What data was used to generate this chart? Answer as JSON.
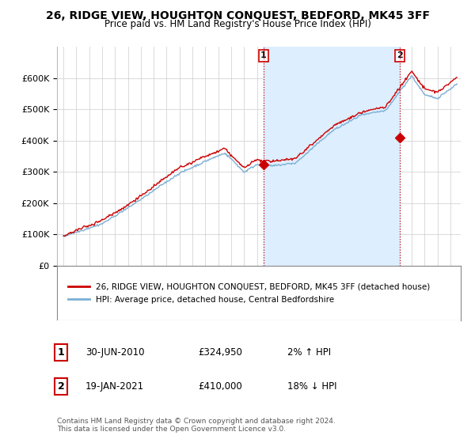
{
  "title": "26, RIDGE VIEW, HOUGHTON CONQUEST, BEDFORD, MK45 3FF",
  "subtitle": "Price paid vs. HM Land Registry's House Price Index (HPI)",
  "title_fontsize": 10,
  "subtitle_fontsize": 8.5,
  "background_color": "#ffffff",
  "plot_bg_color": "#ffffff",
  "grid_color": "#cccccc",
  "hpi_color": "#7bafd4",
  "price_color": "#cc0000",
  "shade_color": "#ddeeff",
  "sale1_x": 2010.5,
  "sale1_y": 324950,
  "sale2_x": 2021.05,
  "sale2_y": 410000,
  "ylim": [
    0,
    700000
  ],
  "xlim": [
    1994.5,
    2025.8
  ],
  "yticks": [
    0,
    100000,
    200000,
    300000,
    400000,
    500000,
    600000
  ],
  "ytick_labels": [
    "£0",
    "£100K",
    "£200K",
    "£300K",
    "£400K",
    "£500K",
    "£600K"
  ],
  "xticks": [
    1995,
    1996,
    1997,
    1998,
    1999,
    2000,
    2001,
    2002,
    2003,
    2004,
    2005,
    2006,
    2007,
    2008,
    2009,
    2010,
    2011,
    2012,
    2013,
    2014,
    2015,
    2016,
    2017,
    2018,
    2019,
    2020,
    2021,
    2022,
    2023,
    2024,
    2025
  ],
  "legend_label1": "26, RIDGE VIEW, HOUGHTON CONQUEST, BEDFORD, MK45 3FF (detached house)",
  "legend_label2": "HPI: Average price, detached house, Central Bedfordshire",
  "note1_date": "30-JUN-2010",
  "note1_price": "£324,950",
  "note1_hpi": "2% ↑ HPI",
  "note2_date": "19-JAN-2021",
  "note2_price": "£410,000",
  "note2_hpi": "18% ↓ HPI",
  "footer": "Contains HM Land Registry data © Crown copyright and database right 2024.\nThis data is licensed under the Open Government Licence v3.0."
}
